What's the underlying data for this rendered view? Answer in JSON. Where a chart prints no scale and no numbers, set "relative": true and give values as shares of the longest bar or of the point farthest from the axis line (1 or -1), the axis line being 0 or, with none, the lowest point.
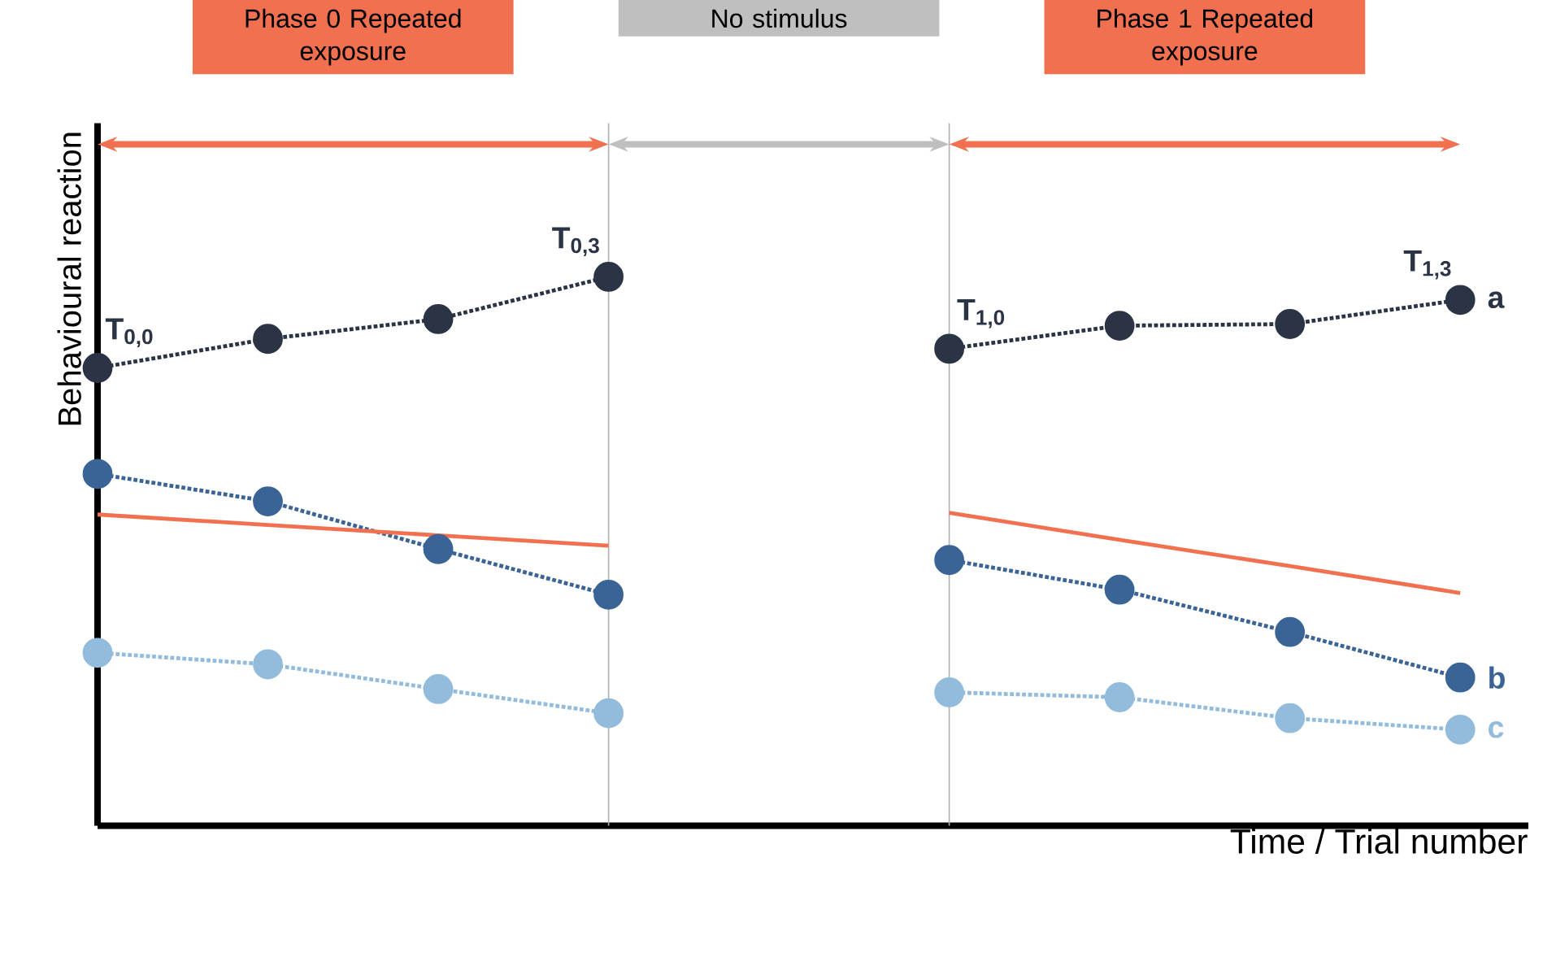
{
  "chart_data": {
    "type": "line",
    "relative": true,
    "xlabel": "Time / Trial number",
    "ylabel": "Behavioural reaction",
    "categories": [
      null,
      null,
      null,
      null,
      null,
      null,
      null,
      null,
      null
    ],
    "tick_labels": false,
    "legend": "right",
    "series": [
      {
        "color": "#2b3445",
        "marker": "circle",
        "line_style": "dotted",
        "values": [
          0.834,
          0.887,
          0.923,
          1,
          null,
          null,
          null,
          null,
          null
        ]
      },
      {
        "name": "a",
        "color": "#2b3445",
        "marker": "circle",
        "line_style": "dotted",
        "values": [
          null,
          null,
          null,
          null,
          null,
          0.869,
          0.911,
          0.914,
          0.958
        ]
      },
      {
        "color": "#3a6496",
        "marker": "circle",
        "line_style": "dotted",
        "values": [
          0.641,
          0.591,
          0.504,
          0.421,
          null,
          null,
          null,
          null,
          null
        ]
      },
      {
        "name": "b",
        "color": "#3a6496",
        "marker": "circle",
        "line_style": "dotted",
        "values": [
          null,
          null,
          null,
          null,
          null,
          0.484,
          0.43,
          0.353,
          0.27
        ]
      },
      {
        "color": "#93bcdc",
        "marker": "circle",
        "line_style": "dotted",
        "values": [
          0.315,
          0.294,
          0.249,
          0.205,
          null,
          null,
          null,
          null,
          null
        ]
      },
      {
        "name": "c",
        "color": "#93bcdc",
        "marker": "circle",
        "line_style": "dotted",
        "values": [
          null,
          null,
          null,
          null,
          null,
          0.243,
          0.234,
          0.196,
          0.175
        ]
      },
      {
        "color": "#f07050",
        "marker": "none",
        "line_style": "solid",
        "values": [
          0.567,
          0.548,
          0.529,
          0.51,
          null,
          null,
          null,
          null,
          null
        ]
      },
      {
        "color": "#f07050",
        "marker": "none",
        "line_style": "solid",
        "values": [
          null,
          null,
          null,
          null,
          null,
          0.57,
          0.521,
          0.473,
          0.424
        ]
      }
    ],
    "annotations": [
      "Phase 0 Repeated exposure",
      "No stimulus",
      "Phase 1 Repeated exposure",
      "T$_{0,0}$",
      "T$_{0,3}$",
      "T$_{1,0}$",
      "T$_{1,3}$"
    ]
  }
}
